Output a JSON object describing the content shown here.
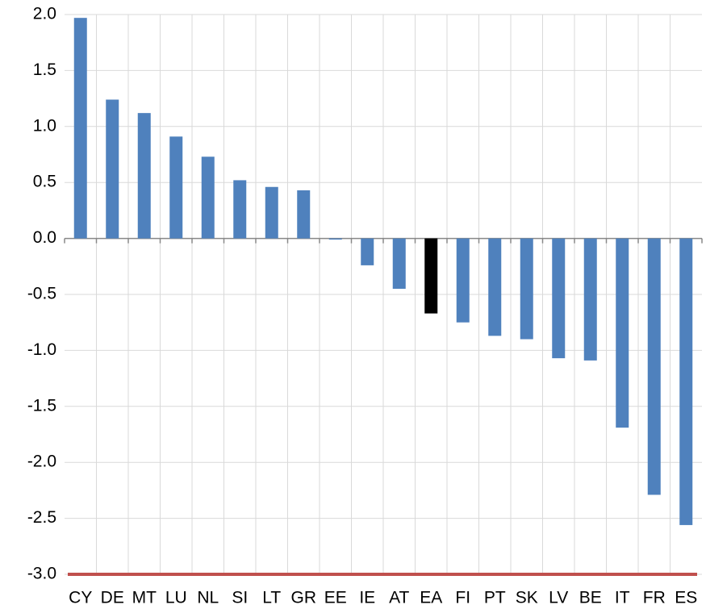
{
  "chart_data": {
    "type": "bar",
    "categories": [
      "CY",
      "DE",
      "MT",
      "LU",
      "NL",
      "SI",
      "LT",
      "GR",
      "EE",
      "IE",
      "AT",
      "EA",
      "FI",
      "PT",
      "SK",
      "LV",
      "BE",
      "IT",
      "FR",
      "ES"
    ],
    "values": [
      1.97,
      1.24,
      1.12,
      0.91,
      0.73,
      0.52,
      0.46,
      0.43,
      -0.01,
      -0.24,
      -0.45,
      -0.67,
      -0.75,
      -0.87,
      -0.9,
      -1.07,
      -1.09,
      -1.69,
      -2.29,
      -2.56
    ],
    "colors": [
      "#4f81bd",
      "#4f81bd",
      "#4f81bd",
      "#4f81bd",
      "#4f81bd",
      "#4f81bd",
      "#4f81bd",
      "#4f81bd",
      "#4f81bd",
      "#4f81bd",
      "#4f81bd",
      "#000000",
      "#4f81bd",
      "#4f81bd",
      "#4f81bd",
      "#4f81bd",
      "#4f81bd",
      "#4f81bd",
      "#4f81bd",
      "#4f81bd"
    ],
    "ylim": [
      -3,
      2
    ],
    "yticks": [
      {
        "value": 2,
        "label": "2.0"
      },
      1.5,
      {
        "value": 1,
        "label": "1.0"
      },
      0.5,
      {
        "value": 0,
        "label": "0.0"
      },
      -0.5,
      {
        "value": -1,
        "label": "-1.0"
      },
      -1.5,
      {
        "value": -2,
        "label": "-2.0"
      },
      -2.5,
      {
        "value": -3,
        "label": "-3.0"
      }
    ],
    "grid": true
  }
}
